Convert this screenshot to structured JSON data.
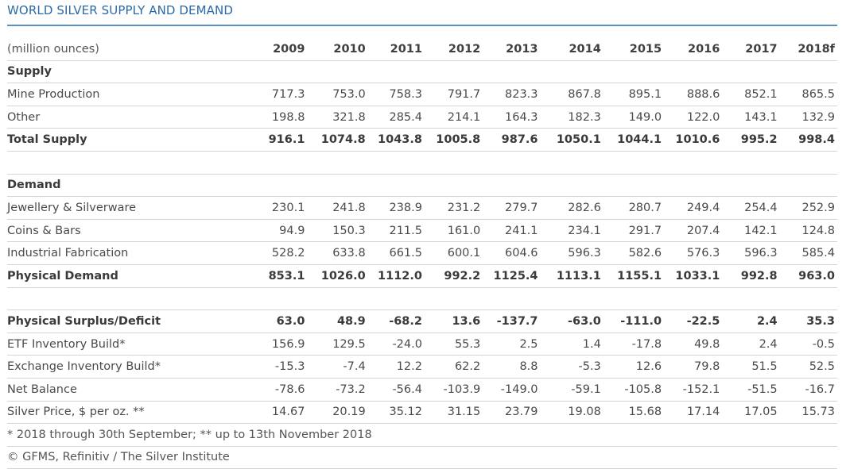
{
  "title": "WORLD SILVER SUPPLY AND DEMAND",
  "columns_label": "(million ounces)",
  "years": [
    "2009",
    "2010",
    "2011",
    "2012",
    "2013",
    "2014",
    "2015",
    "2016",
    "2017",
    "2018f"
  ],
  "rows": [
    {
      "type": "section",
      "label": "Supply"
    },
    {
      "type": "data",
      "label": "Mine Production",
      "values": [
        "717.3",
        "753.0",
        "758.3",
        "791.7",
        "823.3",
        "867.8",
        "895.1",
        "888.6",
        "852.1",
        "865.5"
      ]
    },
    {
      "type": "data",
      "label": "Other",
      "values": [
        "198.8",
        "321.8",
        "285.4",
        "214.1",
        "164.3",
        "182.3",
        "149.0",
        "122.0",
        "143.1",
        "132.9"
      ]
    },
    {
      "type": "bold",
      "label": "Total Supply",
      "values": [
        "916.1",
        "1074.8",
        "1043.8",
        "1005.8",
        "987.6",
        "1050.1",
        "1044.1",
        "1010.6",
        "995.2",
        "998.4"
      ]
    },
    {
      "type": "blank"
    },
    {
      "type": "section",
      "label": "Demand"
    },
    {
      "type": "data",
      "label": "Jewellery & Silverware",
      "values": [
        "230.1",
        "241.8",
        "238.9",
        "231.2",
        "279.7",
        "282.6",
        "280.7",
        "249.4",
        "254.4",
        "252.9"
      ]
    },
    {
      "type": "data",
      "label": "Coins & Bars",
      "values": [
        "94.9",
        "150.3",
        "211.5",
        "161.0",
        "241.1",
        "234.1",
        "291.7",
        "207.4",
        "142.1",
        "124.8"
      ]
    },
    {
      "type": "data",
      "label": "Industrial Fabrication",
      "values": [
        "528.2",
        "633.8",
        "661.5",
        "600.1",
        "604.6",
        "596.3",
        "582.6",
        "576.3",
        "596.3",
        "585.4"
      ]
    },
    {
      "type": "bold",
      "label": "Physical Demand",
      "values": [
        "853.1",
        "1026.0",
        "1112.0",
        "992.2",
        "1125.4",
        "1113.1",
        "1155.1",
        "1033.1",
        "992.8",
        "963.0"
      ]
    },
    {
      "type": "blank"
    },
    {
      "type": "bold",
      "label": "Physical Surplus/Deficit",
      "values": [
        "63.0",
        "48.9",
        "-68.2",
        "13.6",
        "-137.7",
        "-63.0",
        "-111.0",
        "-22.5",
        "2.4",
        "35.3"
      ]
    },
    {
      "type": "data",
      "label": "ETF Inventory Build*",
      "values": [
        "156.9",
        "129.5",
        "-24.0",
        "55.3",
        "2.5",
        "1.4",
        "-17.8",
        "49.8",
        "2.4",
        "-0.5"
      ]
    },
    {
      "type": "data",
      "label": "Exchange Inventory Build*",
      "values": [
        "-15.3",
        "-7.4",
        "12.2",
        "62.2",
        "8.8",
        "-5.3",
        "12.6",
        "79.8",
        "51.5",
        "52.5"
      ]
    },
    {
      "type": "data",
      "label": "Net Balance",
      "values": [
        "-78.6",
        "-73.2",
        "-56.4",
        "-103.9",
        "-149.0",
        "-59.1",
        "-105.8",
        "-152.1",
        "-51.5",
        "-16.7"
      ]
    },
    {
      "type": "data",
      "label": "Silver Price, $ per oz. **",
      "values": [
        "14.67",
        "20.19",
        "35.12",
        "31.15",
        "23.79",
        "19.08",
        "15.68",
        "17.14",
        "17.05",
        "15.73"
      ]
    }
  ],
  "footnote": "* 2018 through 30th September; ** up to 13th November 2018",
  "source": "© GFMS, Refinitiv / The Silver Institute"
}
